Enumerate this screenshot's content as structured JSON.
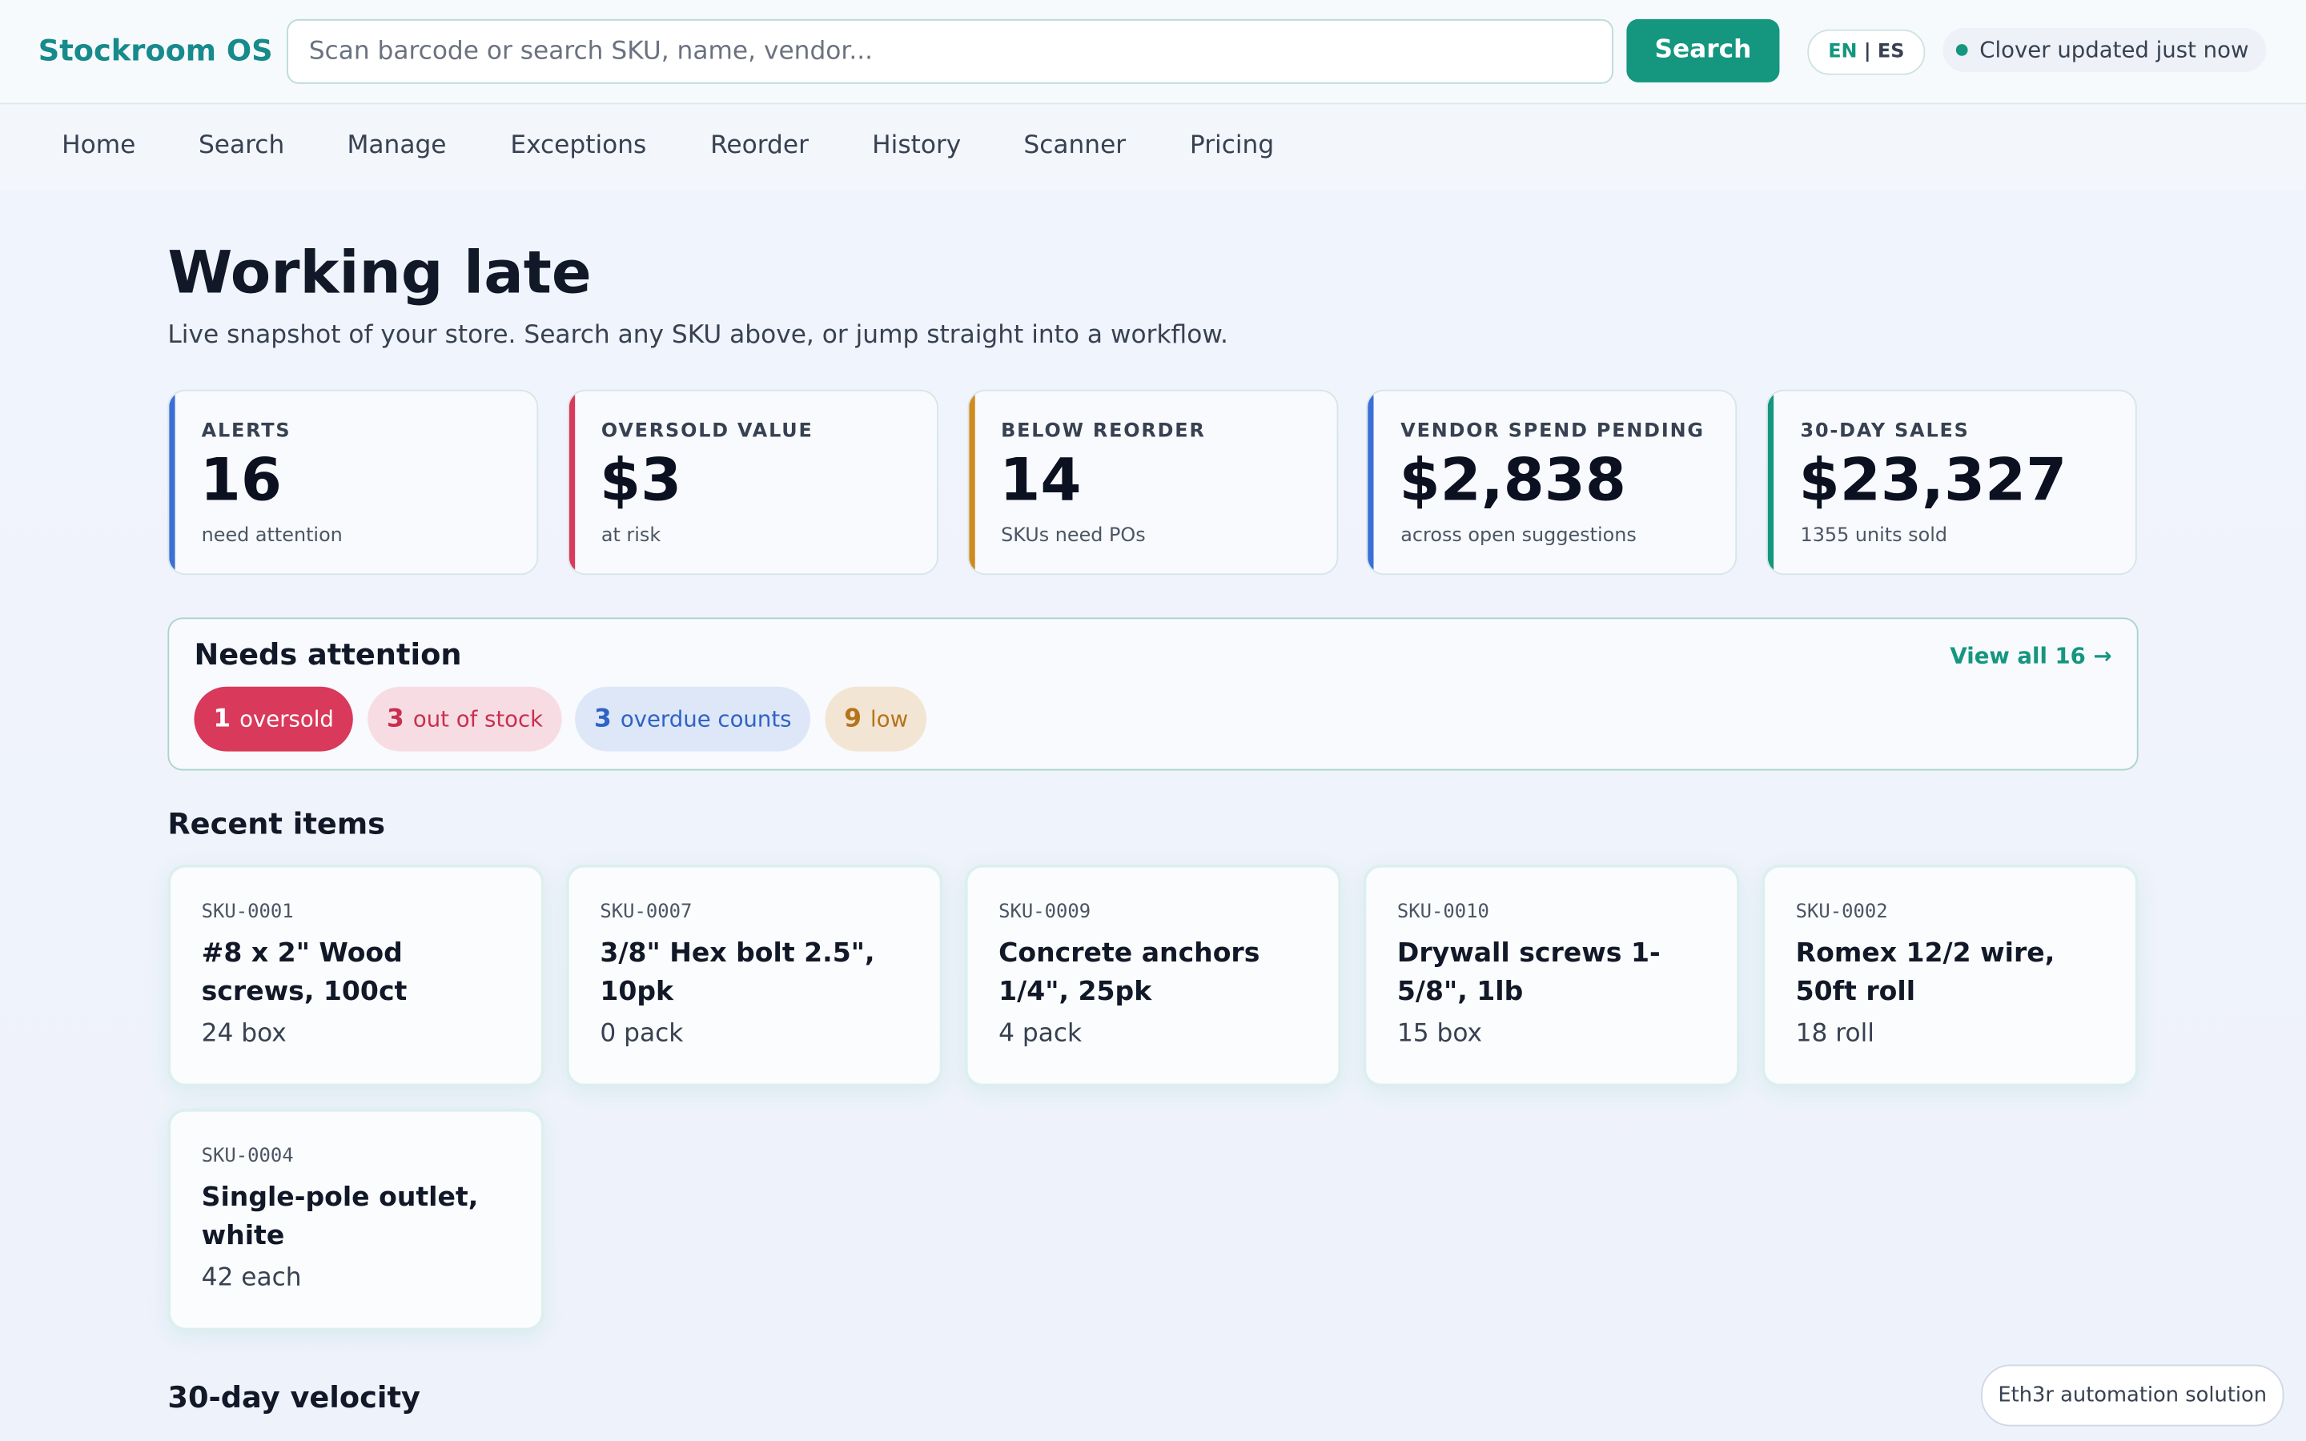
{
  "header": {
    "logo": "Stockroom OS",
    "search_placeholder": "Scan barcode or search SKU, name, vendor...",
    "search_button": "Search",
    "lang_en": "EN",
    "lang_sep": "|",
    "lang_es": "ES",
    "status": "Clover updated just now"
  },
  "nav": [
    "Home",
    "Search",
    "Manage",
    "Exceptions",
    "Reorder",
    "History",
    "Scanner",
    "Pricing"
  ],
  "hero": {
    "title": "Working late",
    "subtitle": "Live snapshot of your store. Search any SKU above, or jump straight into a workflow."
  },
  "kpis": [
    {
      "label": "ALERTS",
      "value": "16",
      "note": "need attention",
      "color": "#3b6fd6"
    },
    {
      "label": "OVERSOLD VALUE",
      "value": "$3",
      "note": "at risk",
      "color": "#d9395a"
    },
    {
      "label": "BELOW REORDER",
      "value": "14",
      "note": "SKUs need POs",
      "color": "#d08a1e"
    },
    {
      "label": "VENDOR SPEND PENDING",
      "value": "$2,838",
      "note": "across open suggestions",
      "color": "#3b6fd6"
    },
    {
      "label": "30-DAY SALES",
      "value": "$23,327",
      "note": "1355 units sold",
      "color": "#14967f"
    }
  ],
  "attention": {
    "title": "Needs attention",
    "link": "View all 16 →",
    "chips": [
      {
        "count": "1",
        "label": "oversold"
      },
      {
        "count": "3",
        "label": "out of stock"
      },
      {
        "count": "3",
        "label": "overdue counts"
      },
      {
        "count": "9",
        "label": "low"
      }
    ]
  },
  "recent": {
    "title": "Recent items",
    "items": [
      {
        "sku": "SKU-0001",
        "name": "#8 x 2\" Wood screws, 100ct",
        "qty": "24 box"
      },
      {
        "sku": "SKU-0007",
        "name": "3/8\" Hex bolt 2.5\", 10pk",
        "qty": "0 pack"
      },
      {
        "sku": "SKU-0009",
        "name": "Concrete anchors 1/4\", 25pk",
        "qty": "4 pack"
      },
      {
        "sku": "SKU-0010",
        "name": "Drywall screws 1-5/8\", 1lb",
        "qty": "15 box"
      },
      {
        "sku": "SKU-0002",
        "name": "Romex 12/2 wire, 50ft roll",
        "qty": "18 roll"
      },
      {
        "sku": "SKU-0004",
        "name": "Single-pole outlet, white",
        "qty": "42 each"
      }
    ]
  },
  "velocity": {
    "title": "30-day velocity"
  },
  "badge": "Eth3r automation solution"
}
